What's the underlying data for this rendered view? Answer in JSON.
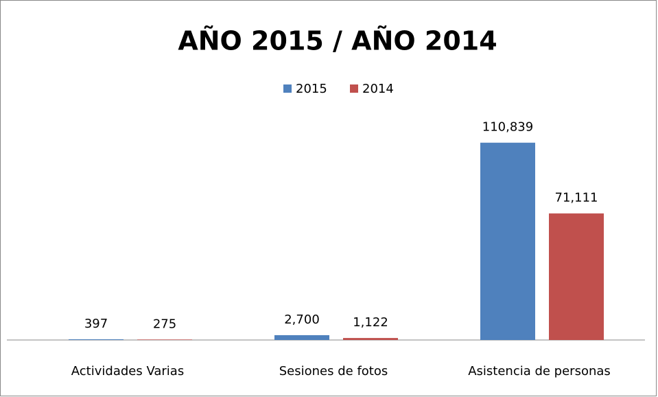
{
  "chart_data": {
    "type": "bar",
    "title": "AÑO 2015 / AÑO 2014",
    "categories": [
      "Actividades Varias",
      "Sesiones de fotos",
      "Asistencia de personas"
    ],
    "series": [
      {
        "name": "2015",
        "color": "#4f81bd",
        "values": [
          397,
          2700,
          110839
        ],
        "value_labels": [
          "397",
          "2,700",
          "110,839"
        ]
      },
      {
        "name": "2014",
        "color": "#c0504d",
        "values": [
          275,
          1122,
          71111
        ],
        "value_labels": [
          "275",
          "1,122",
          "71,111"
        ]
      }
    ],
    "ylim": [
      0,
      120000
    ],
    "legend": "top"
  }
}
